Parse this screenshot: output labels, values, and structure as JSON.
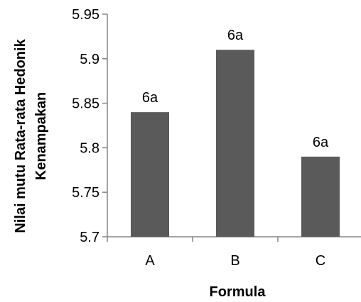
{
  "chart_data": {
    "type": "bar",
    "categories": [
      "A",
      "B",
      "C"
    ],
    "values": [
      5.84,
      5.91,
      5.79
    ],
    "data_labels": [
      "6a",
      "6a",
      "6a"
    ],
    "xlabel": "Formula",
    "ylabel_lines": [
      "Nilai mutu  Rata-rata Hedonik",
      "Kenampakan"
    ],
    "ylim": [
      5.7,
      5.95
    ],
    "yticks": [
      5.7,
      5.75,
      5.8,
      5.85,
      5.9,
      5.95
    ],
    "ytick_labels": [
      "5.7",
      "5.75",
      "5.8",
      "5.85",
      "5.9",
      "5.95"
    ],
    "bar_color": "#5a5a5a",
    "axis_color": "#868686",
    "grid": false,
    "legend": "none"
  }
}
